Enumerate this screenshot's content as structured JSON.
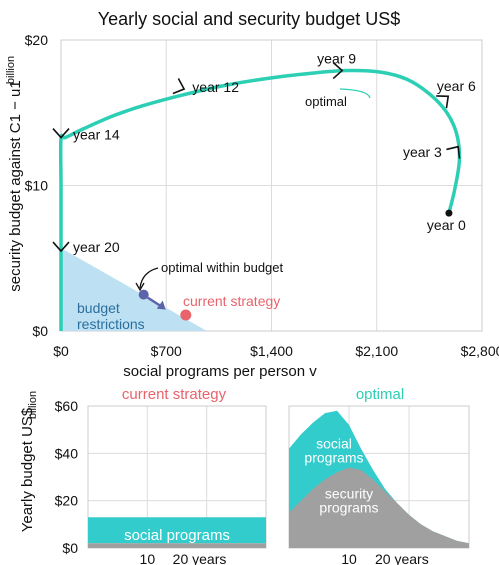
{
  "colors": {
    "path": "#2dcfb4",
    "budget_fill": "#bde0f2",
    "budget_text": "#2b6f9e",
    "current": "#e8636b",
    "optimal_marker": "#5b64a8",
    "social": "#33cccc",
    "security": "#a0a0a0",
    "grid": "#dcdcdc"
  },
  "chart_data": [
    {
      "type": "line",
      "title": "Yearly social and security budget US$",
      "xlabel": "social programs per person v",
      "ylabel": "security budget against C1 − u1",
      "y_unit": "billion",
      "xlim": [
        0,
        2800
      ],
      "ylim": [
        0,
        20
      ],
      "x_ticks": [
        0,
        700,
        1400,
        2100,
        2800
      ],
      "x_tick_labels": [
        "$0",
        "$700",
        "$1,400",
        "$2,100",
        "$2,800"
      ],
      "y_ticks": [
        0,
        10,
        20
      ],
      "y_tick_labels": [
        "$0",
        "$10",
        "$20"
      ],
      "grid": true,
      "series": [
        {
          "x": [
            2580,
            2620,
            2650,
            2630,
            2560,
            2450,
            2300,
            2120,
            1900,
            1650,
            1400,
            1100,
            800,
            550,
            350,
            150,
            30,
            0,
            0,
            0,
            0
          ],
          "y": [
            8.1,
            9.8,
            11.8,
            13.6,
            15.1,
            16.3,
            17.3,
            17.8,
            17.9,
            17.7,
            17.4,
            16.9,
            16.2,
            15.5,
            14.8,
            13.9,
            13.3,
            13.2,
            10.0,
            5.7,
            0
          ]
        }
      ],
      "year_labels": [
        {
          "text": "year 0",
          "x": 2580,
          "y": 8.1
        },
        {
          "text": "year 3",
          "x": 2640,
          "y": 12.5
        },
        {
          "text": "year 6",
          "x": 2520,
          "y": 16.0
        },
        {
          "text": "year 9",
          "x": 1850,
          "y": 17.9
        },
        {
          "text": "year 12",
          "x": 800,
          "y": 16.7
        },
        {
          "text": "year 14",
          "x": 0,
          "y": 13.5
        },
        {
          "text": "year 20",
          "x": 0,
          "y": 5.7
        }
      ],
      "optimal_label": "optimal",
      "budget_region": {
        "label": "budget\nrestrictions",
        "x": [
          0,
          0,
          970
        ],
        "y": [
          0,
          5.7,
          0
        ]
      },
      "points": [
        {
          "name": "optimal within budget",
          "x": 550,
          "y": 2.5
        },
        {
          "name": "current strategy",
          "x": 830,
          "y": 1.1
        }
      ]
    },
    {
      "type": "area",
      "title": "current strategy",
      "ylabel": "Yearly budget US$",
      "y_unit": "billion",
      "ylim": [
        0,
        60
      ],
      "y_ticks": [
        0,
        20,
        40,
        60
      ],
      "y_tick_labels": [
        "$0",
        "$20",
        "$40",
        "$60"
      ],
      "xlim": [
        0,
        30
      ],
      "x_ticks": [
        10,
        20
      ],
      "x_tick_labels": [
        "10",
        "20 years"
      ],
      "series": [
        {
          "name": "security",
          "x": [
            0,
            30
          ],
          "values": [
            2,
            2
          ]
        },
        {
          "name": "social programs",
          "x": [
            0,
            30
          ],
          "values": [
            11,
            11
          ]
        }
      ]
    },
    {
      "type": "area",
      "title": "optimal",
      "ylim": [
        0,
        60
      ],
      "xlim": [
        0,
        30
      ],
      "x_ticks": [
        10,
        20
      ],
      "x_tick_labels": [
        "10",
        "20 years"
      ],
      "series": [
        {
          "name": "security\nprograms",
          "x": [
            0,
            2,
            4,
            6,
            8,
            10,
            12,
            14,
            16,
            18,
            20,
            22,
            24,
            26,
            28,
            30
          ],
          "values": [
            15,
            20,
            25,
            29,
            32,
            34,
            33,
            29,
            24,
            19,
            14,
            10,
            7,
            5,
            3,
            2
          ]
        },
        {
          "name": "social\nprograms",
          "x": [
            0,
            2,
            4,
            6,
            8,
            10,
            12,
            14,
            16,
            18,
            20,
            22,
            24,
            26,
            28,
            30
          ],
          "values": [
            42,
            48,
            53,
            57,
            58,
            52,
            42,
            33,
            25,
            19,
            14,
            10,
            7,
            5,
            3,
            2
          ]
        }
      ]
    }
  ]
}
